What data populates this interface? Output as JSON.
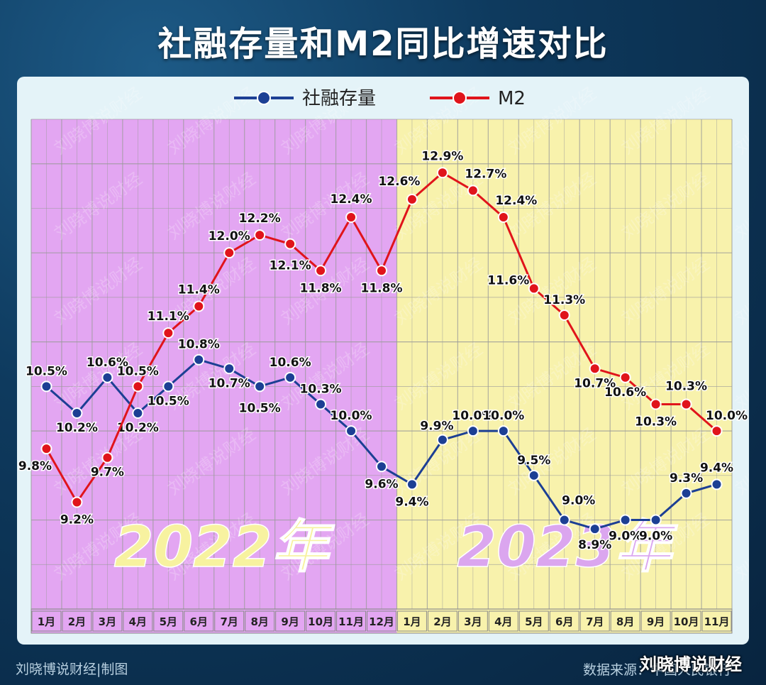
{
  "title": "社融存量和M2同比增速对比",
  "footer": {
    "credit": "刘晓博说财经|制图",
    "source": "数据来源：中国人民银行",
    "brand": "刘晓博说财经"
  },
  "watermark": "刘晓博说财经",
  "colors": {
    "series_shrong": "#1c3f94",
    "series_m2": "#e0141b",
    "bg_2022": "#e3a6f2",
    "bg_2023": "#f8f2ac",
    "year_2022_text": "#f7f2a0",
    "year_2023_text": "#dba6ef"
  },
  "chart_data": {
    "type": "line",
    "title": "社融存量和M2同比增速对比",
    "categories": [
      "1月",
      "2月",
      "3月",
      "4月",
      "5月",
      "6月",
      "7月",
      "8月",
      "9月",
      "10月",
      "11月",
      "12月",
      "1月",
      "2月",
      "3月",
      "4月",
      "5月",
      "6月",
      "7月",
      "8月",
      "9月",
      "10月",
      "11月"
    ],
    "year_labels": [
      "2022年",
      "2023年"
    ],
    "series": [
      {
        "name": "社融存量",
        "color": "#1c3f94",
        "values": [
          10.5,
          10.2,
          10.6,
          10.2,
          10.5,
          10.8,
          10.7,
          10.5,
          10.6,
          10.3,
          10.0,
          9.6,
          9.4,
          9.9,
          10.0,
          10.0,
          9.5,
          9.0,
          8.9,
          9.0,
          9.0,
          9.3,
          9.4
        ],
        "labels": [
          "10.5%",
          "10.2%",
          "10.6%",
          "10.2%",
          "10.5%",
          "10.8%",
          "10.7%",
          "10.5%",
          "10.6%",
          "10.3%",
          "10.0%",
          "9.6%",
          "9.4%",
          "9.9%",
          "10.0%",
          "10.0%",
          "9.5%",
          "9.0%",
          "8.9%",
          "9.0%",
          "9.0%",
          "9.3%",
          "9.4%"
        ]
      },
      {
        "name": "M2",
        "color": "#e0141b",
        "values": [
          9.8,
          9.2,
          9.7,
          10.5,
          11.1,
          11.4,
          12.0,
          12.2,
          12.1,
          11.8,
          12.4,
          11.8,
          12.6,
          12.9,
          12.7,
          12.4,
          11.6,
          11.3,
          10.7,
          10.6,
          10.3,
          10.3,
          10.0
        ],
        "labels": [
          "9.8%",
          "9.2%",
          "9.7%",
          "10.5%",
          "11.1%",
          "11.4%",
          "12.0%",
          "12.2%",
          "12.1%",
          "11.8%",
          "12.4%",
          "11.8%",
          "12.6%",
          "12.9%",
          "12.7%",
          "12.4%",
          "11.6%",
          "11.3%",
          "10.7%",
          "10.6%",
          "10.3%",
          "10.3%",
          "10.0%"
        ]
      }
    ],
    "ylim": [
      8.0,
      13.5
    ],
    "grid": true,
    "legend": "top-center"
  }
}
